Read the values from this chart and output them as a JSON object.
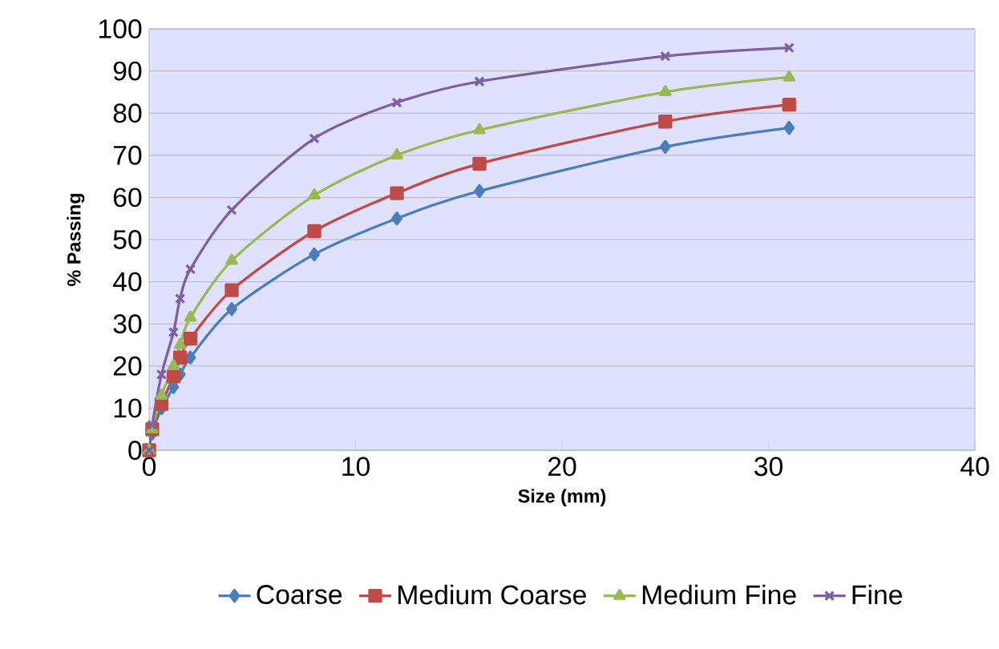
{
  "chart_data": {
    "type": "line",
    "xlabel": "Size (mm)",
    "ylabel": "% Passing",
    "x": [
      0,
      0.15,
      0.6,
      1.18,
      1.5,
      2,
      4,
      8,
      12,
      16,
      25,
      31
    ],
    "series": [
      {
        "name": "Coarse",
        "color": "#4a7ebb",
        "marker": "diamond",
        "values": [
          0,
          4,
          10,
          15,
          18,
          22,
          33.5,
          46.5,
          55,
          61.5,
          72,
          76.5
        ]
      },
      {
        "name": "Medium Coarse",
        "color": "#be4b48",
        "marker": "square",
        "values": [
          0,
          5,
          11,
          17.5,
          22,
          26.5,
          38,
          52,
          61,
          68,
          78,
          82
        ]
      },
      {
        "name": "Medium Fine",
        "color": "#98b954",
        "marker": "triangle",
        "values": [
          0,
          5,
          13,
          20,
          25,
          31.5,
          45,
          60.5,
          70,
          76,
          85,
          88.5
        ]
      },
      {
        "name": "Fine",
        "color": "#7d60a0",
        "marker": "cross",
        "values": [
          0,
          6,
          18,
          28,
          36,
          43,
          57,
          74,
          82.5,
          87.5,
          93.5,
          95.5
        ]
      }
    ],
    "xlim": [
      0,
      40
    ],
    "xticks": [
      0,
      10,
      20,
      30,
      40
    ],
    "ylim": [
      0,
      100
    ],
    "yticks": [
      0,
      10,
      20,
      30,
      40,
      50,
      60,
      70,
      80,
      90,
      100
    ],
    "grid": "y",
    "legend": "bottom"
  }
}
